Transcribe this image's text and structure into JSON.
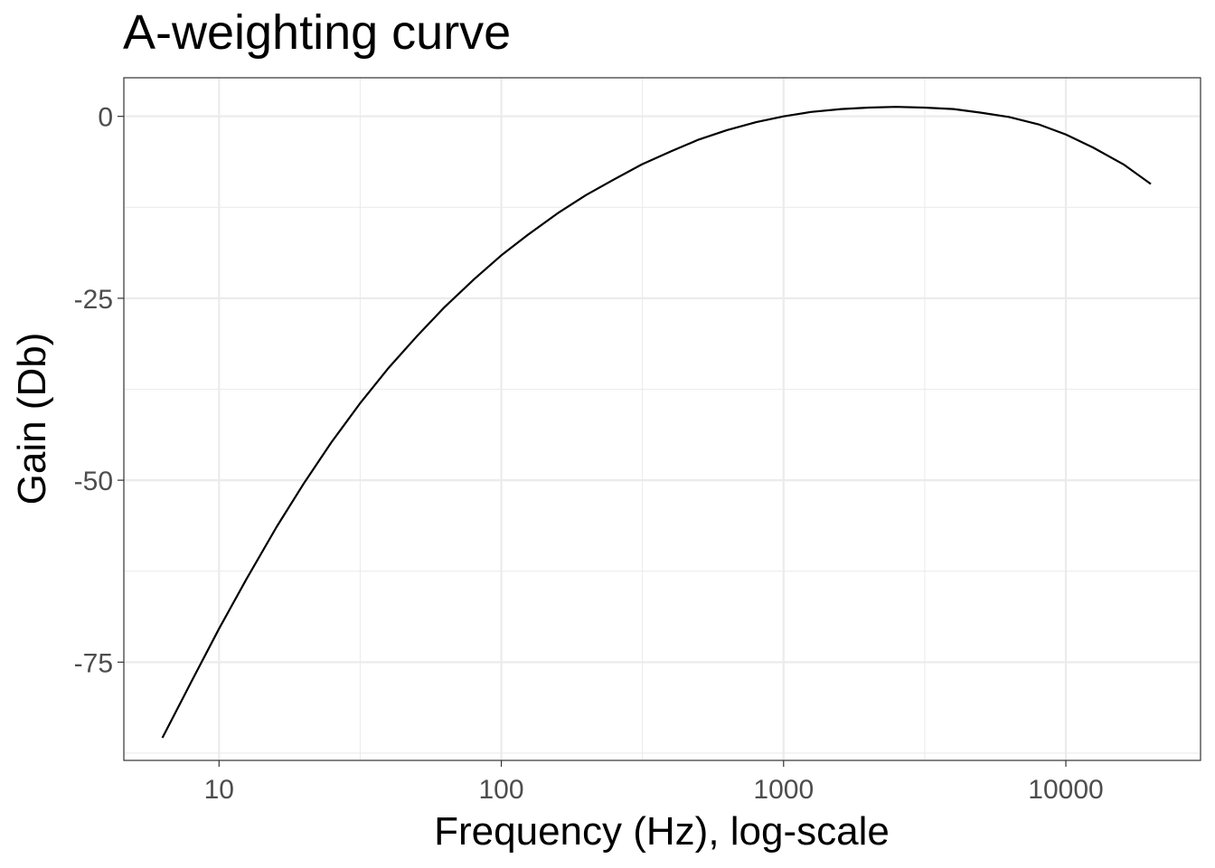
{
  "chart_data": {
    "type": "line",
    "title": "A-weighting curve",
    "xlabel": "Frequency (Hz), log-scale",
    "ylabel": "Gain (Db)",
    "x_scale": "log10",
    "xlim": [
      4.6,
      30000
    ],
    "ylim": [
      -88.5,
      5.3
    ],
    "x_ticks": [
      10,
      100,
      1000,
      10000
    ],
    "x_tick_labels": [
      "10",
      "100",
      "1000",
      "10000"
    ],
    "y_ticks": [
      0,
      -25,
      -50,
      -75
    ],
    "y_tick_labels": [
      "0",
      "-25",
      "-50",
      "-75"
    ],
    "grid": true,
    "series": [
      {
        "color": "#000000",
        "x": [
          6.3,
          8,
          10,
          12.5,
          16,
          20,
          25,
          31.5,
          40,
          50,
          63,
          80,
          100,
          125,
          160,
          200,
          250,
          315,
          400,
          500,
          630,
          800,
          1000,
          1250,
          1600,
          2000,
          2500,
          3150,
          4000,
          5000,
          6300,
          8000,
          10000,
          12500,
          16000,
          20000
        ],
        "y": [
          -85.4,
          -77.6,
          -70.4,
          -63.6,
          -56.4,
          -50.4,
          -44.8,
          -39.5,
          -34.5,
          -30.3,
          -26.2,
          -22.4,
          -19.1,
          -16.2,
          -13.2,
          -10.8,
          -8.7,
          -6.6,
          -4.8,
          -3.2,
          -1.9,
          -0.8,
          0.0,
          0.6,
          1.0,
          1.2,
          1.3,
          1.2,
          1.0,
          0.5,
          -0.1,
          -1.1,
          -2.5,
          -4.3,
          -6.6,
          -9.3
        ]
      }
    ]
  }
}
